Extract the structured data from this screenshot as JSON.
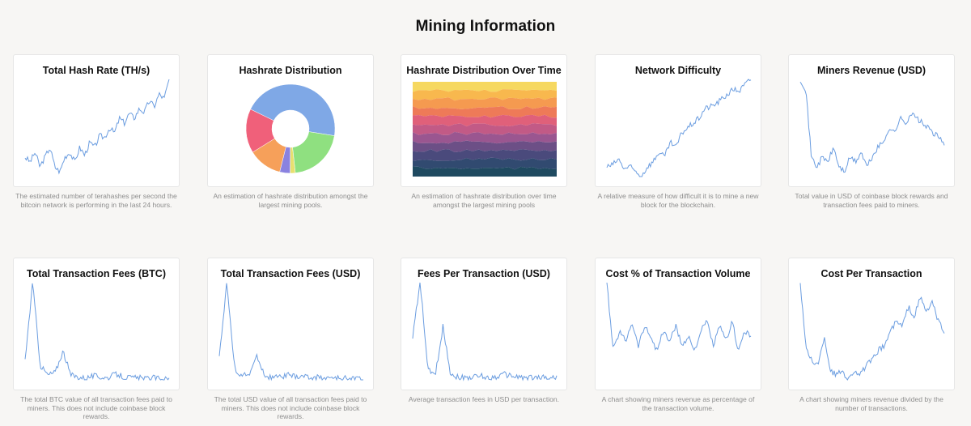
{
  "page": {
    "title": "Mining Information"
  },
  "colors": {
    "line": "#6b9de0"
  },
  "cards": [
    {
      "title": "Total Hash Rate (TH/s)",
      "description": "The estimated number of terahashes per second the bitcoin network is performing in the last 24 hours."
    },
    {
      "title": "Hashrate Distribution",
      "description": "An estimation of hashrate distribution amongst the largest mining pools."
    },
    {
      "title": "Hashrate Distribution Over Time",
      "description": "An estimation of hashrate distribution over time amongst the largest mining pools"
    },
    {
      "title": "Network Difficulty",
      "description": "A relative measure of how difficult it is to mine a new block for the blockchain."
    },
    {
      "title": "Miners Revenue (USD)",
      "description": "Total value in USD of coinbase block rewards and transaction fees paid to miners."
    },
    {
      "title": "Total Transaction Fees (BTC)",
      "description": "The total BTC value of all transaction fees paid to miners. This does not include coinbase block rewards."
    },
    {
      "title": "Total Transaction Fees (USD)",
      "description": "The total USD value of all transaction fees paid to miners. This does not include coinbase block rewards."
    },
    {
      "title": "Fees Per Transaction (USD)",
      "description": "Average transaction fees in USD per transaction."
    },
    {
      "title": "Cost % of Transaction Volume",
      "description": "A chart showing miners revenue as percentage of the transaction volume."
    },
    {
      "title": "Cost Per Transaction",
      "description": "A chart showing miners revenue divided by the number of transactions."
    }
  ],
  "chart_data": [
    {
      "type": "line",
      "title": "Total Hash Rate (TH/s)",
      "y_shape": [
        0.2,
        0.15,
        0.25,
        0.1,
        0.2,
        0.3,
        0.1,
        0.05,
        0.2,
        0.25,
        0.15,
        0.3,
        0.22,
        0.35,
        0.3,
        0.42,
        0.4,
        0.5,
        0.45,
        0.6,
        0.55,
        0.65,
        0.6,
        0.7,
        0.66,
        0.78,
        0.72,
        0.85,
        0.8,
        1.0
      ]
    },
    {
      "type": "pie",
      "title": "Hashrate Distribution",
      "values": [
        48,
        22,
        2,
        4,
        13,
        17
      ],
      "colors": [
        "#7fa8e6",
        "#8fe080",
        "#e8e070",
        "#8a82e0",
        "#f6a05a",
        "#f0607a"
      ]
    },
    {
      "type": "area",
      "title": "Hashrate Distribution Over Time",
      "colors": [
        "#f6d860",
        "#f8b84e",
        "#f59a50",
        "#ee7a58",
        "#e0607a",
        "#c25a86",
        "#9a5690",
        "#6c4f86",
        "#4a4a7c",
        "#314a70",
        "#1f4a60"
      ]
    },
    {
      "type": "line",
      "title": "Network Difficulty",
      "y_shape": [
        0.1,
        0.12,
        0.18,
        0.08,
        0.1,
        0.05,
        0.0,
        0.1,
        0.15,
        0.25,
        0.2,
        0.35,
        0.3,
        0.45,
        0.5,
        0.55,
        0.6,
        0.7,
        0.72,
        0.75,
        0.8,
        0.85,
        0.9,
        0.88,
        0.95,
        1.0
      ]
    },
    {
      "type": "line",
      "title": "Miners Revenue (USD)",
      "y_shape": [
        1.0,
        0.9,
        0.2,
        0.1,
        0.2,
        0.15,
        0.3,
        0.1,
        0.05,
        0.2,
        0.15,
        0.25,
        0.1,
        0.2,
        0.3,
        0.35,
        0.5,
        0.45,
        0.6,
        0.55,
        0.65,
        0.6,
        0.55,
        0.5,
        0.45,
        0.4,
        0.35
      ]
    },
    {
      "type": "line",
      "title": "Total Transaction Fees (BTC)",
      "y_shape": [
        0.2,
        1.0,
        0.15,
        0.05,
        0.08,
        0.3,
        0.05,
        0.03,
        0.02,
        0.04,
        0.03,
        0.02,
        0.06,
        0.03,
        0.02,
        0.02,
        0.01,
        0.02,
        0.01,
        0.01
      ]
    },
    {
      "type": "line",
      "title": "Total Transaction Fees (USD)",
      "y_shape": [
        0.25,
        1.0,
        0.12,
        0.04,
        0.06,
        0.25,
        0.04,
        0.02,
        0.03,
        0.05,
        0.03,
        0.04,
        0.02,
        0.03,
        0.02,
        0.02,
        0.01,
        0.02,
        0.01,
        0.01
      ]
    },
    {
      "type": "line",
      "title": "Fees Per Transaction (USD)",
      "y_shape": [
        0.45,
        1.0,
        0.1,
        0.05,
        0.55,
        0.06,
        0.03,
        0.02,
        0.03,
        0.04,
        0.02,
        0.03,
        0.06,
        0.04,
        0.03,
        0.02,
        0.02,
        0.03,
        0.02,
        0.02
      ]
    },
    {
      "type": "line",
      "title": "Cost % of Transaction Volume",
      "y_shape": [
        1.0,
        0.3,
        0.5,
        0.4,
        0.6,
        0.35,
        0.55,
        0.45,
        0.3,
        0.5,
        0.4,
        0.55,
        0.35,
        0.45,
        0.3,
        0.5,
        0.6,
        0.35,
        0.55,
        0.4,
        0.6,
        0.3,
        0.5,
        0.45
      ]
    },
    {
      "type": "line",
      "title": "Cost Per Transaction",
      "y_shape": [
        1.0,
        0.3,
        0.2,
        0.15,
        0.45,
        0.1,
        0.05,
        0.1,
        0.0,
        0.1,
        0.05,
        0.15,
        0.2,
        0.3,
        0.35,
        0.5,
        0.6,
        0.55,
        0.75,
        0.65,
        0.85,
        0.7,
        0.8,
        0.6,
        0.5
      ]
    }
  ]
}
